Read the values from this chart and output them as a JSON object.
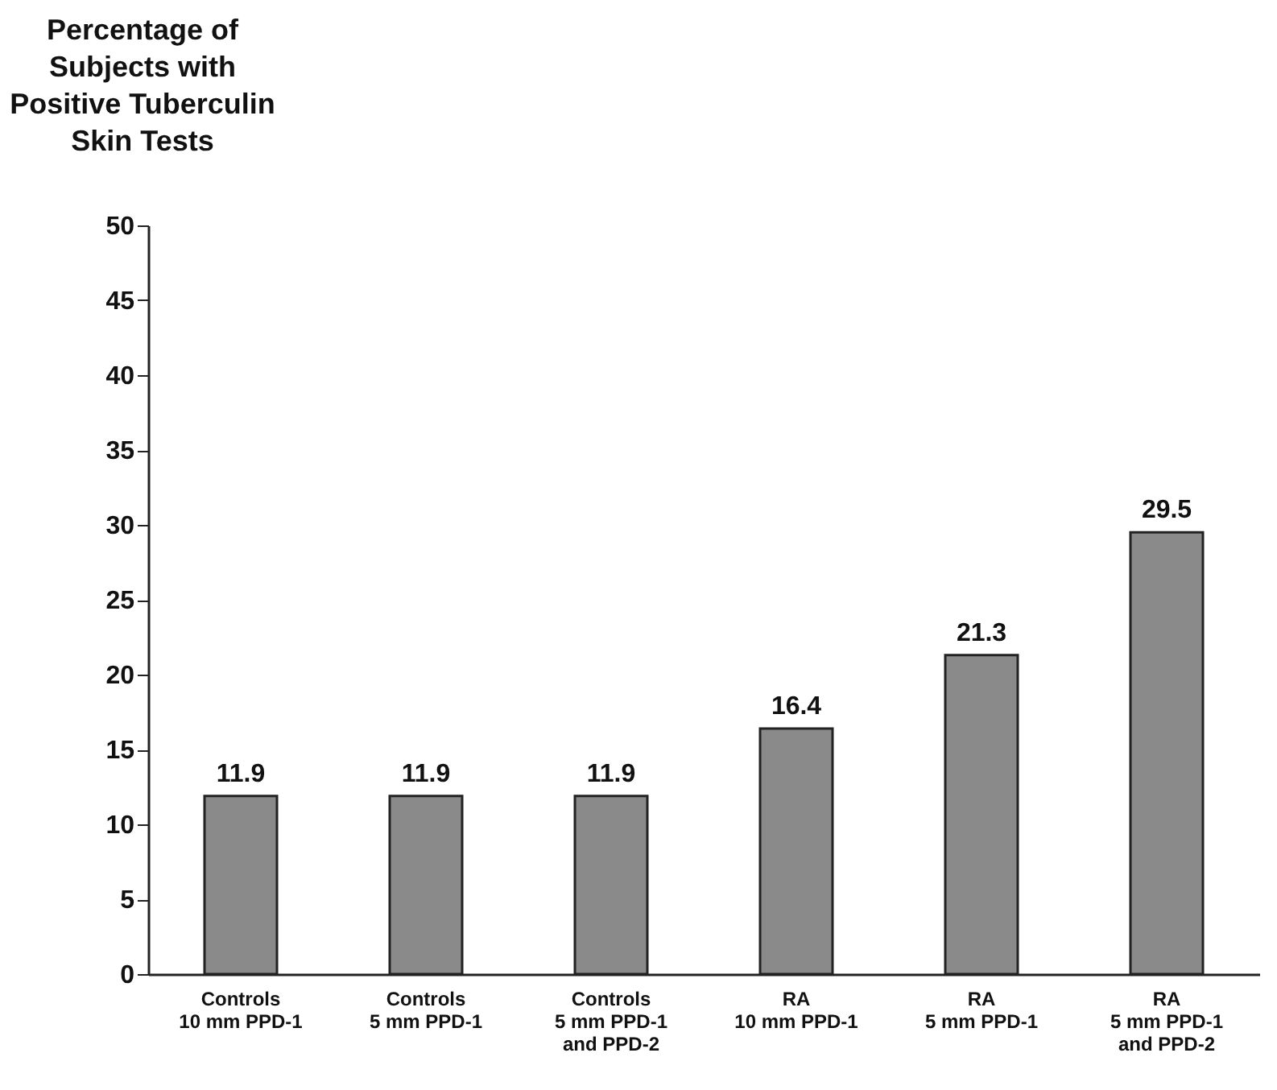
{
  "chart_data": {
    "type": "bar",
    "ylabel": "Percentage of\nSubjects with\nPositive Tuberculin\nSkin Tests",
    "categories": [
      "Controls\n10 mm PPD-1",
      "Controls\n5 mm PPD-1",
      "Controls\n5 mm PPD-1\nand PPD-2",
      "RA\n10 mm PPD-1",
      "RA\n5 mm PPD-1",
      "RA\n5 mm PPD-1\nand PPD-2"
    ],
    "values": [
      11.9,
      11.9,
      11.9,
      16.4,
      21.3,
      29.5
    ],
    "color": "#8a8a8a",
    "ylim": [
      0,
      50
    ],
    "yticks": [
      0,
      5,
      10,
      15,
      20,
      25,
      30,
      35,
      40,
      45,
      50
    ],
    "grid": false,
    "data_labels": true
  }
}
